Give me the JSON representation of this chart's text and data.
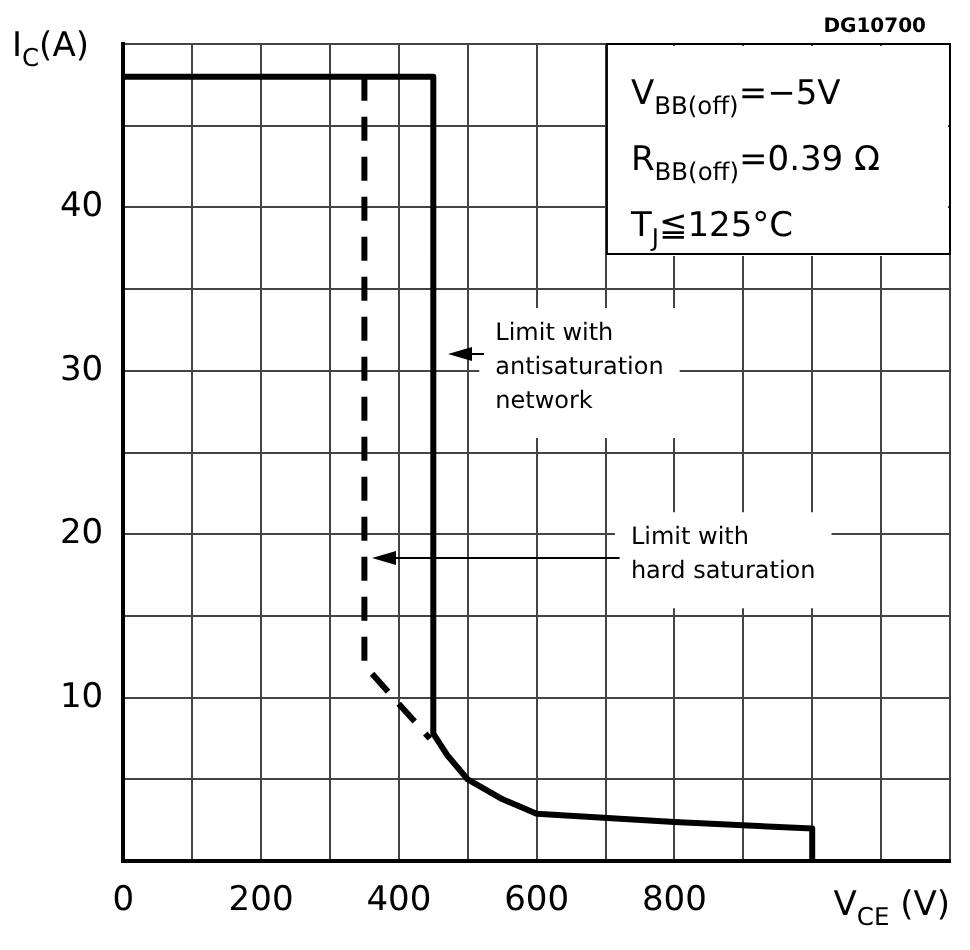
{
  "chart_data": {
    "type": "line",
    "xlabel": "V$_{CE}$ (V)",
    "ylabel": "I$_{C}$(A)",
    "xlim": [
      0,
      1200
    ],
    "ylim": [
      0,
      50
    ],
    "xticks": [
      0,
      {
        "value": 100,
        "label": null
      },
      200,
      {
        "value": 300,
        "label": null
      },
      400,
      {
        "value": 500,
        "label": null
      },
      600,
      {
        "value": 700,
        "label": null
      },
      800,
      {
        "value": 900,
        "label": null
      },
      {
        "value": 1000,
        "label": null
      },
      {
        "value": 1100,
        "label": null
      },
      {
        "value": 1200,
        "label": null
      }
    ],
    "yticks": [
      {
        "value": 0,
        "label": null
      },
      {
        "value": 5,
        "label": null
      },
      10,
      {
        "value": 15,
        "label": null
      },
      20,
      {
        "value": 25,
        "label": null
      },
      30,
      {
        "value": 35,
        "label": null
      },
      40,
      {
        "value": 45,
        "label": null
      },
      {
        "value": 50,
        "label": null
      }
    ],
    "grid": true,
    "marker": "none",
    "series": [
      {
        "color": "#000000",
        "line_style": "solid",
        "x": [
          0,
          450,
          450,
          470,
          500,
          550,
          600,
          800,
          1000,
          1000
        ],
        "values": [
          48,
          48,
          7.8,
          6.5,
          5,
          3.8,
          2.9,
          2.4,
          2,
          0
        ]
      },
      {
        "color": "#000000",
        "line_style": "dashed",
        "x": [
          350,
          350,
          445
        ],
        "values": [
          48,
          12,
          7.5
        ]
      }
    ],
    "annotations": [
      "DG10700",
      "V$_{BB(off)}$=−5V",
      "R$_{BB(off)}$=0.39 Ω",
      "T$_{J}$≦125°C",
      {
        "text": "Limit with\nantisaturation\nnetwork",
        "x": 450,
        "y": 31
      },
      "Limit with\nhard saturation"
    ]
  }
}
